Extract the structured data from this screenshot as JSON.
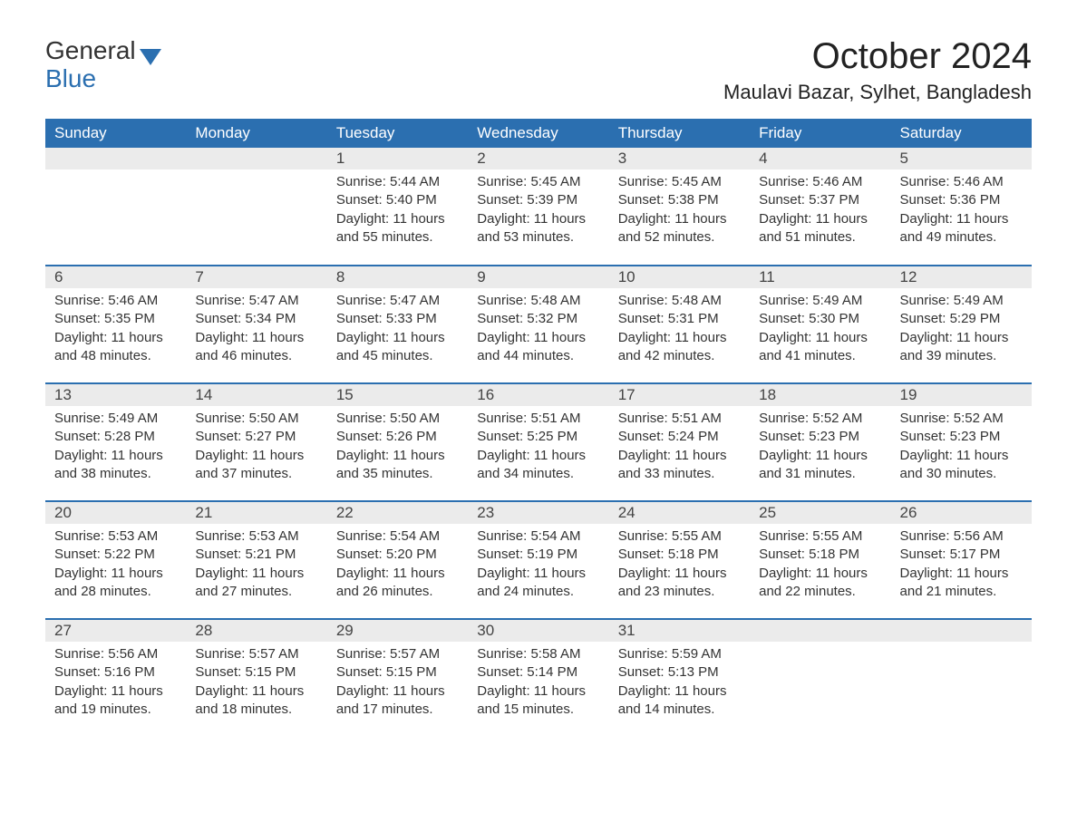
{
  "logo": {
    "text1": "General",
    "text2": "Blue"
  },
  "title": "October 2024",
  "subtitle": "Maulavi Bazar, Sylhet, Bangladesh",
  "colors": {
    "header_bg": "#2b6fb0",
    "header_text": "#ffffff",
    "daynum_bg": "#ebebeb",
    "row_border": "#2b6fb0",
    "body_text": "#333333",
    "page_bg": "#ffffff"
  },
  "weekdays": [
    "Sunday",
    "Monday",
    "Tuesday",
    "Wednesday",
    "Thursday",
    "Friday",
    "Saturday"
  ],
  "weeks": [
    [
      null,
      null,
      {
        "d": "1",
        "sr": "Sunrise: 5:44 AM",
        "ss": "Sunset: 5:40 PM",
        "dl1": "Daylight: 11 hours",
        "dl2": "and 55 minutes."
      },
      {
        "d": "2",
        "sr": "Sunrise: 5:45 AM",
        "ss": "Sunset: 5:39 PM",
        "dl1": "Daylight: 11 hours",
        "dl2": "and 53 minutes."
      },
      {
        "d": "3",
        "sr": "Sunrise: 5:45 AM",
        "ss": "Sunset: 5:38 PM",
        "dl1": "Daylight: 11 hours",
        "dl2": "and 52 minutes."
      },
      {
        "d": "4",
        "sr": "Sunrise: 5:46 AM",
        "ss": "Sunset: 5:37 PM",
        "dl1": "Daylight: 11 hours",
        "dl2": "and 51 minutes."
      },
      {
        "d": "5",
        "sr": "Sunrise: 5:46 AM",
        "ss": "Sunset: 5:36 PM",
        "dl1": "Daylight: 11 hours",
        "dl2": "and 49 minutes."
      }
    ],
    [
      {
        "d": "6",
        "sr": "Sunrise: 5:46 AM",
        "ss": "Sunset: 5:35 PM",
        "dl1": "Daylight: 11 hours",
        "dl2": "and 48 minutes."
      },
      {
        "d": "7",
        "sr": "Sunrise: 5:47 AM",
        "ss": "Sunset: 5:34 PM",
        "dl1": "Daylight: 11 hours",
        "dl2": "and 46 minutes."
      },
      {
        "d": "8",
        "sr": "Sunrise: 5:47 AM",
        "ss": "Sunset: 5:33 PM",
        "dl1": "Daylight: 11 hours",
        "dl2": "and 45 minutes."
      },
      {
        "d": "9",
        "sr": "Sunrise: 5:48 AM",
        "ss": "Sunset: 5:32 PM",
        "dl1": "Daylight: 11 hours",
        "dl2": "and 44 minutes."
      },
      {
        "d": "10",
        "sr": "Sunrise: 5:48 AM",
        "ss": "Sunset: 5:31 PM",
        "dl1": "Daylight: 11 hours",
        "dl2": "and 42 minutes."
      },
      {
        "d": "11",
        "sr": "Sunrise: 5:49 AM",
        "ss": "Sunset: 5:30 PM",
        "dl1": "Daylight: 11 hours",
        "dl2": "and 41 minutes."
      },
      {
        "d": "12",
        "sr": "Sunrise: 5:49 AM",
        "ss": "Sunset: 5:29 PM",
        "dl1": "Daylight: 11 hours",
        "dl2": "and 39 minutes."
      }
    ],
    [
      {
        "d": "13",
        "sr": "Sunrise: 5:49 AM",
        "ss": "Sunset: 5:28 PM",
        "dl1": "Daylight: 11 hours",
        "dl2": "and 38 minutes."
      },
      {
        "d": "14",
        "sr": "Sunrise: 5:50 AM",
        "ss": "Sunset: 5:27 PM",
        "dl1": "Daylight: 11 hours",
        "dl2": "and 37 minutes."
      },
      {
        "d": "15",
        "sr": "Sunrise: 5:50 AM",
        "ss": "Sunset: 5:26 PM",
        "dl1": "Daylight: 11 hours",
        "dl2": "and 35 minutes."
      },
      {
        "d": "16",
        "sr": "Sunrise: 5:51 AM",
        "ss": "Sunset: 5:25 PM",
        "dl1": "Daylight: 11 hours",
        "dl2": "and 34 minutes."
      },
      {
        "d": "17",
        "sr": "Sunrise: 5:51 AM",
        "ss": "Sunset: 5:24 PM",
        "dl1": "Daylight: 11 hours",
        "dl2": "and 33 minutes."
      },
      {
        "d": "18",
        "sr": "Sunrise: 5:52 AM",
        "ss": "Sunset: 5:23 PM",
        "dl1": "Daylight: 11 hours",
        "dl2": "and 31 minutes."
      },
      {
        "d": "19",
        "sr": "Sunrise: 5:52 AM",
        "ss": "Sunset: 5:23 PM",
        "dl1": "Daylight: 11 hours",
        "dl2": "and 30 minutes."
      }
    ],
    [
      {
        "d": "20",
        "sr": "Sunrise: 5:53 AM",
        "ss": "Sunset: 5:22 PM",
        "dl1": "Daylight: 11 hours",
        "dl2": "and 28 minutes."
      },
      {
        "d": "21",
        "sr": "Sunrise: 5:53 AM",
        "ss": "Sunset: 5:21 PM",
        "dl1": "Daylight: 11 hours",
        "dl2": "and 27 minutes."
      },
      {
        "d": "22",
        "sr": "Sunrise: 5:54 AM",
        "ss": "Sunset: 5:20 PM",
        "dl1": "Daylight: 11 hours",
        "dl2": "and 26 minutes."
      },
      {
        "d": "23",
        "sr": "Sunrise: 5:54 AM",
        "ss": "Sunset: 5:19 PM",
        "dl1": "Daylight: 11 hours",
        "dl2": "and 24 minutes."
      },
      {
        "d": "24",
        "sr": "Sunrise: 5:55 AM",
        "ss": "Sunset: 5:18 PM",
        "dl1": "Daylight: 11 hours",
        "dl2": "and 23 minutes."
      },
      {
        "d": "25",
        "sr": "Sunrise: 5:55 AM",
        "ss": "Sunset: 5:18 PM",
        "dl1": "Daylight: 11 hours",
        "dl2": "and 22 minutes."
      },
      {
        "d": "26",
        "sr": "Sunrise: 5:56 AM",
        "ss": "Sunset: 5:17 PM",
        "dl1": "Daylight: 11 hours",
        "dl2": "and 21 minutes."
      }
    ],
    [
      {
        "d": "27",
        "sr": "Sunrise: 5:56 AM",
        "ss": "Sunset: 5:16 PM",
        "dl1": "Daylight: 11 hours",
        "dl2": "and 19 minutes."
      },
      {
        "d": "28",
        "sr": "Sunrise: 5:57 AM",
        "ss": "Sunset: 5:15 PM",
        "dl1": "Daylight: 11 hours",
        "dl2": "and 18 minutes."
      },
      {
        "d": "29",
        "sr": "Sunrise: 5:57 AM",
        "ss": "Sunset: 5:15 PM",
        "dl1": "Daylight: 11 hours",
        "dl2": "and 17 minutes."
      },
      {
        "d": "30",
        "sr": "Sunrise: 5:58 AM",
        "ss": "Sunset: 5:14 PM",
        "dl1": "Daylight: 11 hours",
        "dl2": "and 15 minutes."
      },
      {
        "d": "31",
        "sr": "Sunrise: 5:59 AM",
        "ss": "Sunset: 5:13 PM",
        "dl1": "Daylight: 11 hours",
        "dl2": "and 14 minutes."
      },
      null,
      null
    ]
  ]
}
